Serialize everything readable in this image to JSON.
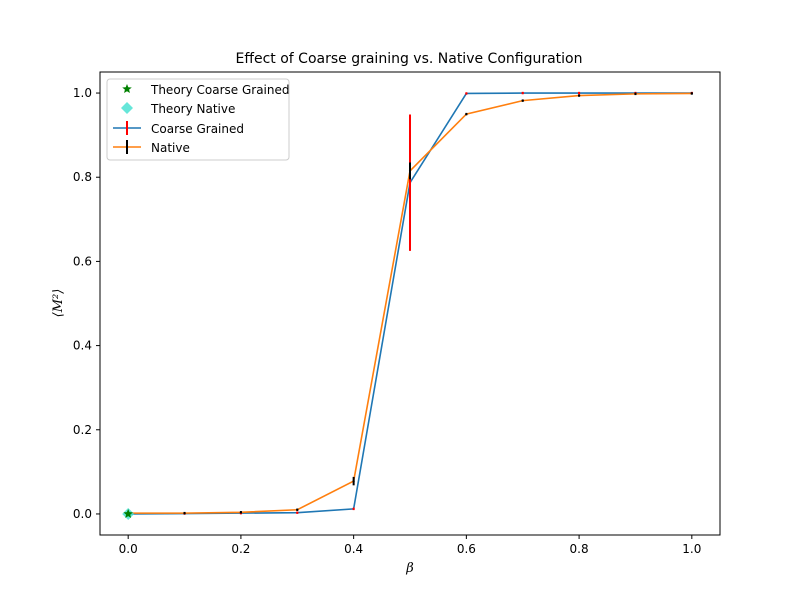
{
  "chart_data": {
    "type": "line",
    "title": "Effect of Coarse graining vs. Native Configuration",
    "xlabel": "β",
    "ylabel": "⟨M²⟩",
    "xlim": [
      -0.05,
      1.05
    ],
    "ylim": [
      -0.05,
      1.05
    ],
    "xticks": [
      0.0,
      0.2,
      0.4,
      0.6,
      0.8,
      1.0
    ],
    "xtick_labels": [
      "0.0",
      "0.2",
      "0.4",
      "0.6",
      "0.8",
      "1.0"
    ],
    "yticks": [
      0.0,
      0.2,
      0.4,
      0.6,
      0.8,
      1.0
    ],
    "ytick_labels": [
      "0.0",
      "0.2",
      "0.4",
      "0.6",
      "0.8",
      "1.0"
    ],
    "grid": false,
    "legend_position": "top-left",
    "x": [
      0.0,
      0.1,
      0.2,
      0.3,
      0.4,
      0.5,
      0.6,
      0.7,
      0.8,
      0.9,
      1.0
    ],
    "series": [
      {
        "name": "Coarse Grained",
        "color": "#1f77b4",
        "errorbar_color": "#ff0000",
        "values": [
          0.0,
          0.001,
          0.002,
          0.003,
          0.012,
          0.787,
          0.999,
          1.0,
          1.0,
          1.0,
          1.0
        ],
        "errors": [
          0.0,
          0.0,
          0.0,
          0.0,
          0.0,
          0.162,
          0.0,
          0.0,
          0.0,
          0.0,
          0.0
        ]
      },
      {
        "name": "Native",
        "color": "#ff7f0e",
        "errorbar_color": "#000000",
        "values": [
          0.002,
          0.002,
          0.004,
          0.01,
          0.078,
          0.815,
          0.95,
          0.982,
          0.994,
          0.998,
          0.999
        ],
        "errors": [
          0.0,
          0.0,
          0.0,
          0.0,
          0.01,
          0.02,
          0.0,
          0.0,
          0.0,
          0.0,
          0.0
        ]
      }
    ],
    "theory": [
      {
        "name": "Theory Coarse Grained",
        "marker": "star",
        "color": "#008000",
        "x": 0.0,
        "y": 0.0
      },
      {
        "name": "Theory Native",
        "marker": "diamond",
        "color": "#40e0d0",
        "x": 0.0,
        "y": 0.0
      }
    ]
  }
}
